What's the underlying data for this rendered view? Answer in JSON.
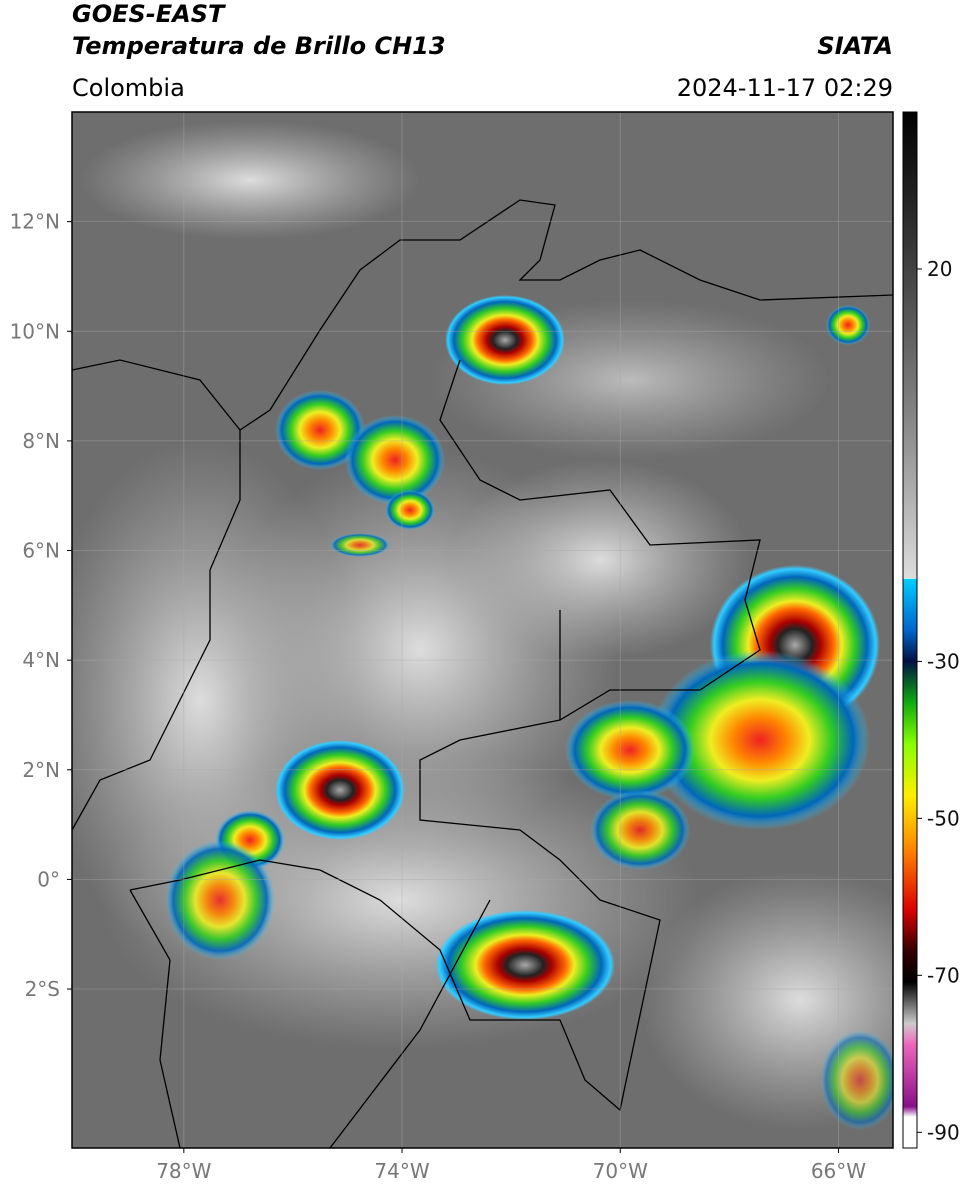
{
  "header": {
    "title": "GOES-EAST",
    "subtitle": "Temperatura de Brillo CH13",
    "region": "Colombia",
    "source": "SIATA",
    "datetime": "2024-11-17 02:29"
  },
  "map": {
    "lonlim": [
      -80.05,
      -65
    ],
    "latlim": [
      -4.9,
      14
    ],
    "lon_ticks": [
      {
        "value": -78,
        "label": "78°W"
      },
      {
        "value": -74,
        "label": "74°W"
      },
      {
        "value": -70,
        "label": "70°W"
      },
      {
        "value": -66,
        "label": "66°W"
      }
    ],
    "lat_ticks": [
      {
        "value": 12,
        "label": "12°N"
      },
      {
        "value": 10,
        "label": "10°N"
      },
      {
        "value": 8,
        "label": "8°N"
      },
      {
        "value": 6,
        "label": "6°N"
      },
      {
        "value": 4,
        "label": "4°N"
      },
      {
        "value": 2,
        "label": "2°N"
      },
      {
        "value": 0,
        "label": "0°"
      },
      {
        "value": -2,
        "label": "2°S"
      }
    ],
    "grid": true
  },
  "colorbar": {
    "lim": [
      -92,
      40
    ],
    "ticks": [
      20,
      -30,
      -50,
      -70,
      -90
    ]
  }
}
